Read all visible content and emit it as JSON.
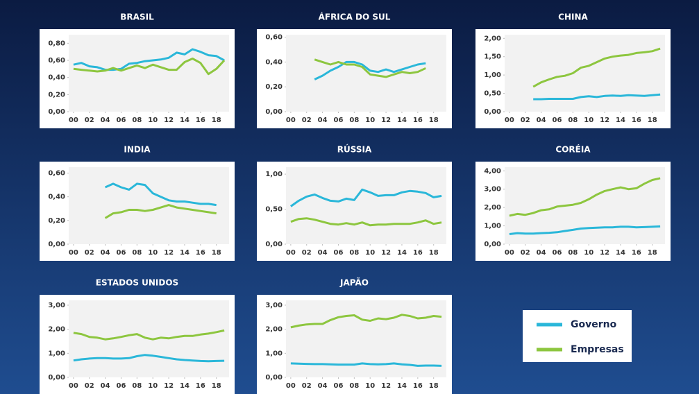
{
  "chart_data": [
    {
      "type": "line",
      "title": "BRASIL",
      "x": [
        0,
        1,
        2,
        3,
        4,
        5,
        6,
        7,
        8,
        9,
        10,
        11,
        12,
        13,
        14,
        15,
        16,
        17,
        18,
        19
      ],
      "xlim": [
        -0.6,
        19.6
      ],
      "xticks": [
        {
          "value": 0,
          "label": "00"
        },
        {
          "value": 2,
          "label": "02"
        },
        {
          "value": 4,
          "label": "04"
        },
        {
          "value": 6,
          "label": "06"
        },
        {
          "value": 8,
          "label": "08"
        },
        {
          "value": 10,
          "label": "10"
        },
        {
          "value": 12,
          "label": "12"
        },
        {
          "value": 14,
          "label": "14"
        },
        {
          "value": 16,
          "label": "16"
        },
        {
          "value": 18,
          "label": "18"
        }
      ],
      "ylim": [
        0,
        0.9
      ],
      "yticks": [
        {
          "value": 0,
          "label": "0,00"
        },
        {
          "value": 0.2,
          "label": "0,20"
        },
        {
          "value": 0.4,
          "label": "0,40"
        },
        {
          "value": 0.6,
          "label": "0,60"
        },
        {
          "value": 0.8,
          "label": "0,80"
        }
      ],
      "series": [
        {
          "name": "Governo",
          "color": "#2ab7d9",
          "values": [
            0.55,
            0.57,
            0.53,
            0.52,
            0.49,
            0.49,
            0.5,
            0.56,
            0.57,
            0.59,
            0.6,
            0.61,
            0.63,
            0.69,
            0.67,
            0.73,
            0.7,
            0.66,
            0.65,
            0.6
          ]
        },
        {
          "name": "Empresas",
          "color": "#8dc63f",
          "values": [
            0.5,
            0.49,
            0.48,
            0.47,
            0.48,
            0.51,
            0.48,
            0.51,
            0.54,
            0.51,
            0.55,
            0.52,
            0.49,
            0.49,
            0.58,
            0.62,
            0.57,
            0.44,
            0.5,
            0.6
          ]
        }
      ]
    },
    {
      "type": "line",
      "title": "ÁFRICA DO SUL",
      "x": [
        0,
        1,
        2,
        3,
        4,
        5,
        6,
        7,
        8,
        9,
        10,
        11,
        12,
        13,
        14,
        15,
        16,
        17,
        18,
        19
      ],
      "xlim": [
        -0.6,
        19.6
      ],
      "xticks": [
        {
          "value": 0,
          "label": "00"
        },
        {
          "value": 2,
          "label": "02"
        },
        {
          "value": 4,
          "label": "04"
        },
        {
          "value": 6,
          "label": "06"
        },
        {
          "value": 8,
          "label": "08"
        },
        {
          "value": 10,
          "label": "10"
        },
        {
          "value": 12,
          "label": "12"
        },
        {
          "value": 14,
          "label": "14"
        },
        {
          "value": 16,
          "label": "16"
        },
        {
          "value": 18,
          "label": "18"
        }
      ],
      "ylim": [
        0,
        0.62
      ],
      "yticks": [
        {
          "value": 0,
          "label": "0,00"
        },
        {
          "value": 0.2,
          "label": "0,20"
        },
        {
          "value": 0.4,
          "label": "0,40"
        },
        {
          "value": 0.6,
          "label": "0,60"
        }
      ],
      "series": [
        {
          "name": "Governo",
          "color": "#2ab7d9",
          "values": [
            null,
            null,
            null,
            0.26,
            0.29,
            0.33,
            0.36,
            0.4,
            0.4,
            0.38,
            0.33,
            0.32,
            0.34,
            0.32,
            0.34,
            0.36,
            0.38,
            0.39,
            null,
            null
          ]
        },
        {
          "name": "Empresas",
          "color": "#8dc63f",
          "values": [
            null,
            null,
            null,
            0.42,
            0.4,
            0.38,
            0.4,
            0.38,
            0.38,
            0.36,
            0.3,
            0.29,
            0.28,
            0.3,
            0.32,
            0.31,
            0.32,
            0.35,
            null,
            null
          ]
        }
      ]
    },
    {
      "type": "line",
      "title": "CHINA",
      "x": [
        0,
        1,
        2,
        3,
        4,
        5,
        6,
        7,
        8,
        9,
        10,
        11,
        12,
        13,
        14,
        15,
        16,
        17,
        18,
        19
      ],
      "xlim": [
        -0.6,
        19.6
      ],
      "xticks": [
        {
          "value": 0,
          "label": "00"
        },
        {
          "value": 2,
          "label": "02"
        },
        {
          "value": 4,
          "label": "04"
        },
        {
          "value": 6,
          "label": "06"
        },
        {
          "value": 8,
          "label": "08"
        },
        {
          "value": 10,
          "label": "10"
        },
        {
          "value": 12,
          "label": "12"
        },
        {
          "value": 14,
          "label": "14"
        },
        {
          "value": 16,
          "label": "16"
        },
        {
          "value": 18,
          "label": "18"
        }
      ],
      "ylim": [
        0,
        2.1
      ],
      "yticks": [
        {
          "value": 0,
          "label": "0,00"
        },
        {
          "value": 0.5,
          "label": "0,50"
        },
        {
          "value": 1,
          "label": "1,00"
        },
        {
          "value": 1.5,
          "label": "1,50"
        },
        {
          "value": 2,
          "label": "2,00"
        }
      ],
      "series": [
        {
          "name": "Governo",
          "color": "#2ab7d9",
          "values": [
            null,
            null,
            null,
            0.34,
            0.34,
            0.35,
            0.35,
            0.35,
            0.35,
            0.4,
            0.42,
            0.4,
            0.43,
            0.44,
            0.43,
            0.45,
            0.44,
            0.43,
            0.45,
            0.47
          ]
        },
        {
          "name": "Empresas",
          "color": "#8dc63f",
          "values": [
            null,
            null,
            null,
            0.68,
            0.8,
            0.88,
            0.95,
            0.98,
            1.05,
            1.2,
            1.25,
            1.35,
            1.45,
            1.5,
            1.53,
            1.55,
            1.6,
            1.62,
            1.65,
            1.72
          ]
        }
      ]
    },
    {
      "type": "line",
      "title": "INDIA",
      "x": [
        0,
        1,
        2,
        3,
        4,
        5,
        6,
        7,
        8,
        9,
        10,
        11,
        12,
        13,
        14,
        15,
        16,
        17,
        18,
        19
      ],
      "xlim": [
        -0.6,
        19.6
      ],
      "xticks": [
        {
          "value": 0,
          "label": "00"
        },
        {
          "value": 2,
          "label": "02"
        },
        {
          "value": 4,
          "label": "04"
        },
        {
          "value": 6,
          "label": "06"
        },
        {
          "value": 8,
          "label": "08"
        },
        {
          "value": 10,
          "label": "10"
        },
        {
          "value": 12,
          "label": "12"
        },
        {
          "value": 14,
          "label": "14"
        },
        {
          "value": 16,
          "label": "16"
        },
        {
          "value": 18,
          "label": "18"
        }
      ],
      "ylim": [
        0,
        0.65
      ],
      "yticks": [
        {
          "value": 0,
          "label": "0,00"
        },
        {
          "value": 0.2,
          "label": "0,20"
        },
        {
          "value": 0.4,
          "label": "0,40"
        },
        {
          "value": 0.6,
          "label": "0,60"
        }
      ],
      "series": [
        {
          "name": "Governo",
          "color": "#2ab7d9",
          "values": [
            null,
            null,
            null,
            null,
            0.48,
            0.51,
            0.48,
            0.46,
            0.51,
            0.5,
            0.43,
            0.4,
            0.37,
            0.36,
            0.36,
            0.35,
            0.34,
            0.34,
            0.33,
            null
          ]
        },
        {
          "name": "Empresas",
          "color": "#8dc63f",
          "values": [
            null,
            null,
            null,
            null,
            0.22,
            0.26,
            0.27,
            0.29,
            0.29,
            0.28,
            0.29,
            0.31,
            0.33,
            0.31,
            0.3,
            0.29,
            0.28,
            0.27,
            0.26,
            null
          ]
        }
      ]
    },
    {
      "type": "line",
      "title": "RÚSSIA",
      "x": [
        0,
        1,
        2,
        3,
        4,
        5,
        6,
        7,
        8,
        9,
        10,
        11,
        12,
        13,
        14,
        15,
        16,
        17,
        18,
        19
      ],
      "xlim": [
        -0.6,
        19.6
      ],
      "xticks": [
        {
          "value": 0,
          "label": "00"
        },
        {
          "value": 2,
          "label": "02"
        },
        {
          "value": 4,
          "label": "04"
        },
        {
          "value": 6,
          "label": "06"
        },
        {
          "value": 8,
          "label": "08"
        },
        {
          "value": 10,
          "label": "10"
        },
        {
          "value": 12,
          "label": "12"
        },
        {
          "value": 14,
          "label": "14"
        },
        {
          "value": 16,
          "label": "16"
        },
        {
          "value": 18,
          "label": "18"
        }
      ],
      "ylim": [
        0,
        1.1
      ],
      "yticks": [
        {
          "value": 0,
          "label": "0,00"
        },
        {
          "value": 0.5,
          "label": "0,50"
        },
        {
          "value": 1,
          "label": "1,00"
        }
      ],
      "series": [
        {
          "name": "Governo",
          "color": "#2ab7d9",
          "values": [
            0.54,
            0.62,
            0.68,
            0.71,
            0.66,
            0.62,
            0.61,
            0.65,
            0.63,
            0.78,
            0.74,
            0.69,
            0.7,
            0.7,
            0.74,
            0.76,
            0.75,
            0.73,
            0.67,
            0.69
          ]
        },
        {
          "name": "Empresas",
          "color": "#8dc63f",
          "values": [
            0.32,
            0.36,
            0.37,
            0.35,
            0.32,
            0.29,
            0.28,
            0.3,
            0.28,
            0.31,
            0.27,
            0.28,
            0.28,
            0.29,
            0.29,
            0.29,
            0.31,
            0.34,
            0.29,
            0.31
          ]
        }
      ]
    },
    {
      "type": "line",
      "title": "CORÉIA",
      "x": [
        0,
        1,
        2,
        3,
        4,
        5,
        6,
        7,
        8,
        9,
        10,
        11,
        12,
        13,
        14,
        15,
        16,
        17,
        18,
        19
      ],
      "xlim": [
        -0.6,
        19.6
      ],
      "xticks": [
        {
          "value": 0,
          "label": "00"
        },
        {
          "value": 2,
          "label": "02"
        },
        {
          "value": 4,
          "label": "04"
        },
        {
          "value": 6,
          "label": "06"
        },
        {
          "value": 8,
          "label": "08"
        },
        {
          "value": 10,
          "label": "10"
        },
        {
          "value": 12,
          "label": "12"
        },
        {
          "value": 14,
          "label": "14"
        },
        {
          "value": 16,
          "label": "16"
        },
        {
          "value": 18,
          "label": "18"
        }
      ],
      "ylim": [
        0,
        4.2
      ],
      "yticks": [
        {
          "value": 0,
          "label": "0,00"
        },
        {
          "value": 1,
          "label": "1,00"
        },
        {
          "value": 2,
          "label": "2,00"
        },
        {
          "value": 3,
          "label": "3,00"
        },
        {
          "value": 4,
          "label": "4,00"
        }
      ],
      "series": [
        {
          "name": "Governo",
          "color": "#2ab7d9",
          "values": [
            0.55,
            0.6,
            0.58,
            0.58,
            0.6,
            0.62,
            0.65,
            0.72,
            0.78,
            0.85,
            0.88,
            0.9,
            0.92,
            0.92,
            0.95,
            0.95,
            0.92,
            0.93,
            0.95,
            0.97
          ]
        },
        {
          "name": "Empresas",
          "color": "#8dc63f",
          "values": [
            1.55,
            1.65,
            1.6,
            1.7,
            1.85,
            1.9,
            2.05,
            2.1,
            2.15,
            2.25,
            2.45,
            2.7,
            2.9,
            3.0,
            3.1,
            3.0,
            3.05,
            3.3,
            3.5,
            3.6
          ]
        }
      ]
    },
    {
      "type": "line",
      "title": "ESTADOS UNIDOS",
      "x": [
        0,
        1,
        2,
        3,
        4,
        5,
        6,
        7,
        8,
        9,
        10,
        11,
        12,
        13,
        14,
        15,
        16,
        17,
        18,
        19
      ],
      "xlim": [
        -0.6,
        19.6
      ],
      "xticks": [
        {
          "value": 0,
          "label": "00"
        },
        {
          "value": 2,
          "label": "02"
        },
        {
          "value": 4,
          "label": "04"
        },
        {
          "value": 6,
          "label": "06"
        },
        {
          "value": 8,
          "label": "08"
        },
        {
          "value": 10,
          "label": "10"
        },
        {
          "value": 12,
          "label": "12"
        },
        {
          "value": 14,
          "label": "14"
        },
        {
          "value": 16,
          "label": "16"
        },
        {
          "value": 18,
          "label": "18"
        }
      ],
      "ylim": [
        0,
        3.2
      ],
      "yticks": [
        {
          "value": 0,
          "label": "0,00"
        },
        {
          "value": 1,
          "label": "1,00"
        },
        {
          "value": 2,
          "label": "2,00"
        },
        {
          "value": 3,
          "label": "3,00"
        }
      ],
      "series": [
        {
          "name": "Governo",
          "color": "#2ab7d9",
          "values": [
            0.7,
            0.75,
            0.78,
            0.8,
            0.8,
            0.78,
            0.78,
            0.8,
            0.88,
            0.93,
            0.9,
            0.85,
            0.8,
            0.75,
            0.72,
            0.7,
            0.68,
            0.67,
            0.68,
            0.69
          ]
        },
        {
          "name": "Empresas",
          "color": "#8dc63f",
          "values": [
            1.85,
            1.8,
            1.68,
            1.65,
            1.58,
            1.62,
            1.68,
            1.75,
            1.8,
            1.65,
            1.58,
            1.65,
            1.62,
            1.68,
            1.72,
            1.72,
            1.78,
            1.82,
            1.88,
            1.95
          ]
        }
      ]
    },
    {
      "type": "line",
      "title": "JAPÃO",
      "x": [
        0,
        1,
        2,
        3,
        4,
        5,
        6,
        7,
        8,
        9,
        10,
        11,
        12,
        13,
        14,
        15,
        16,
        17,
        18,
        19
      ],
      "xlim": [
        -0.6,
        19.6
      ],
      "xticks": [
        {
          "value": 0,
          "label": "00"
        },
        {
          "value": 2,
          "label": "02"
        },
        {
          "value": 4,
          "label": "04"
        },
        {
          "value": 6,
          "label": "06"
        },
        {
          "value": 8,
          "label": "08"
        },
        {
          "value": 10,
          "label": "10"
        },
        {
          "value": 12,
          "label": "12"
        },
        {
          "value": 14,
          "label": "14"
        },
        {
          "value": 16,
          "label": "16"
        },
        {
          "value": 18,
          "label": "18"
        }
      ],
      "ylim": [
        0,
        3.2
      ],
      "yticks": [
        {
          "value": 0,
          "label": "0,00"
        },
        {
          "value": 1,
          "label": "1,00"
        },
        {
          "value": 2,
          "label": "2,00"
        },
        {
          "value": 3,
          "label": "3,00"
        }
      ],
      "series": [
        {
          "name": "Governo",
          "color": "#2ab7d9",
          "values": [
            0.58,
            0.57,
            0.56,
            0.55,
            0.55,
            0.54,
            0.53,
            0.53,
            0.53,
            0.58,
            0.55,
            0.54,
            0.55,
            0.58,
            0.54,
            0.52,
            0.48,
            0.49,
            0.49,
            0.48
          ]
        },
        {
          "name": "Empresas",
          "color": "#8dc63f",
          "values": [
            2.08,
            2.15,
            2.2,
            2.22,
            2.22,
            2.38,
            2.5,
            2.55,
            2.58,
            2.4,
            2.35,
            2.45,
            2.42,
            2.48,
            2.6,
            2.55,
            2.45,
            2.48,
            2.55,
            2.52
          ]
        }
      ]
    }
  ]
}
